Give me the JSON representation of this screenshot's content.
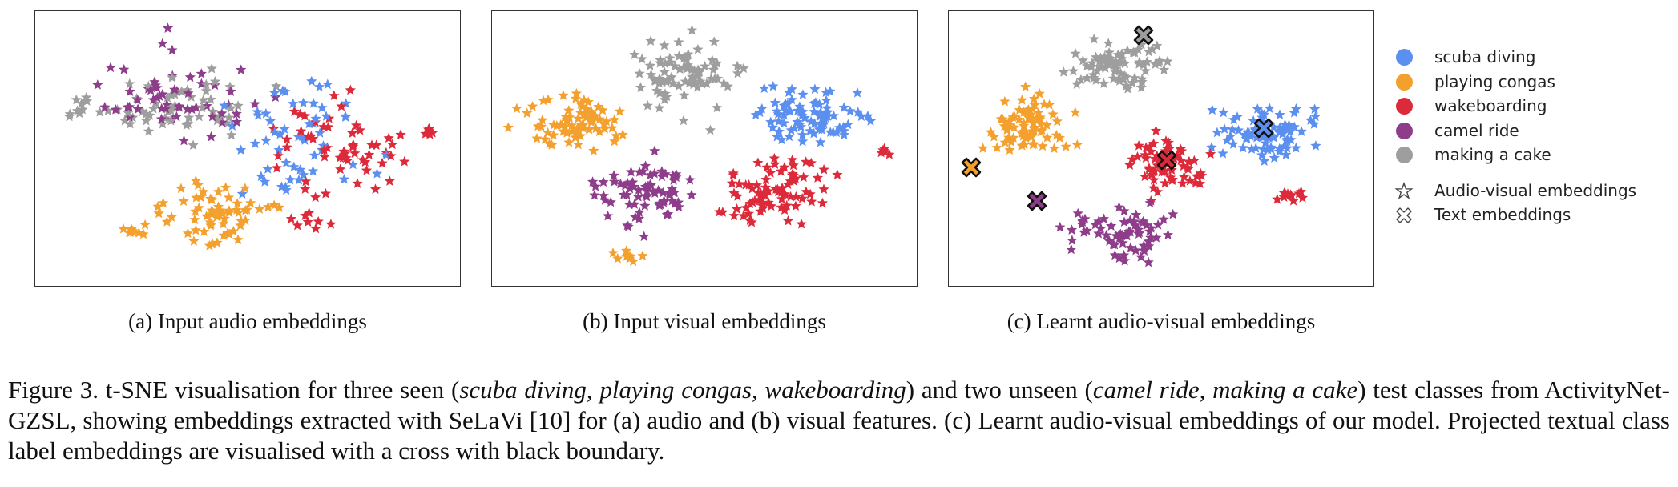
{
  "panels": [
    {
      "id": "a",
      "caption": "(a) Input audio embeddings"
    },
    {
      "id": "b",
      "caption": "(b) Input visual embeddings"
    },
    {
      "id": "c",
      "caption": "(c) Learnt audio-visual embeddings"
    }
  ],
  "legend": {
    "classes": [
      {
        "label": "scuba diving",
        "color": "#5b8ff0"
      },
      {
        "label": "playing congas",
        "color": "#f3a02e"
      },
      {
        "label": "wakeboarding",
        "color": "#dd2a3a"
      },
      {
        "label": "camel ride",
        "color": "#8e3d8b"
      },
      {
        "label": "making a cake",
        "color": "#9e9e9e"
      }
    ],
    "markers": [
      {
        "label": "Audio-visual embeddings",
        "icon": "star-outline-icon"
      },
      {
        "label": "Text embeddings",
        "icon": "cross-outline-icon"
      }
    ]
  },
  "caption": {
    "prefix": "Figure 3.  t-SNE visualisation for three seen (",
    "seen": "scuba diving, playing congas, wakeboarding",
    "middle": ") and two unseen (",
    "unseen": "camel ride, making a cake",
    "suffix": ") test classes from ActivityNet-GZSL, showing embeddings extracted with SeLaVi [10] for (a) audio and (b) visual features.  (c) Learnt audio-visual embeddings of our model. Projected textual class label embeddings are visualised with a cross with black boundary."
  }
}
